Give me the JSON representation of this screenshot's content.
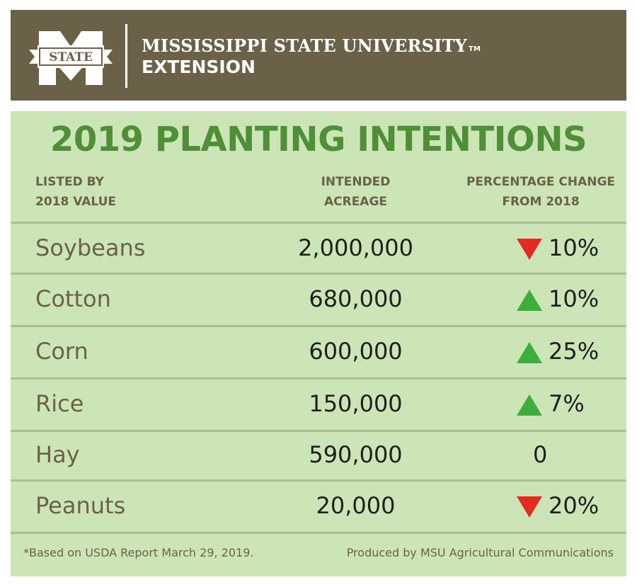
{
  "header": {
    "logo_text": "STATE",
    "university": "MISSISSIPPI STATE UNIVERSITY",
    "trademark": "TM",
    "unit": "EXTENSION"
  },
  "colors": {
    "header_bg": "#6b6148",
    "panel_bg": "#cce5b7",
    "title_green": "#4f8f37",
    "up_arrow": "#3cae3c",
    "down_arrow": "#e32b22"
  },
  "title": "2019 PLANTING INTENTIONS",
  "columns": {
    "col1": [
      "LISTED BY",
      "2018 VALUE"
    ],
    "col2": [
      "INTENDED",
      "ACREAGE"
    ],
    "col3": [
      "PERCENTAGE CHANGE",
      "FROM 2018"
    ]
  },
  "rows": [
    {
      "crop": "Soybeans",
      "acreage": "2,000,000",
      "direction": "down",
      "change": "10%"
    },
    {
      "crop": "Cotton",
      "acreage": "680,000",
      "direction": "up",
      "change": "10%"
    },
    {
      "crop": "Corn",
      "acreage": "600,000",
      "direction": "up",
      "change": "25%"
    },
    {
      "crop": "Rice",
      "acreage": "150,000",
      "direction": "up",
      "change": "7%"
    },
    {
      "crop": "Hay",
      "acreage": "590,000",
      "direction": "none",
      "change": "0"
    },
    {
      "crop": "Peanuts",
      "acreage": "20,000",
      "direction": "down",
      "change": "20%"
    }
  ],
  "footer": {
    "source": "*Based on USDA Report March 29, 2019.",
    "credit": "Produced by MSU Agricultural Communications"
  }
}
